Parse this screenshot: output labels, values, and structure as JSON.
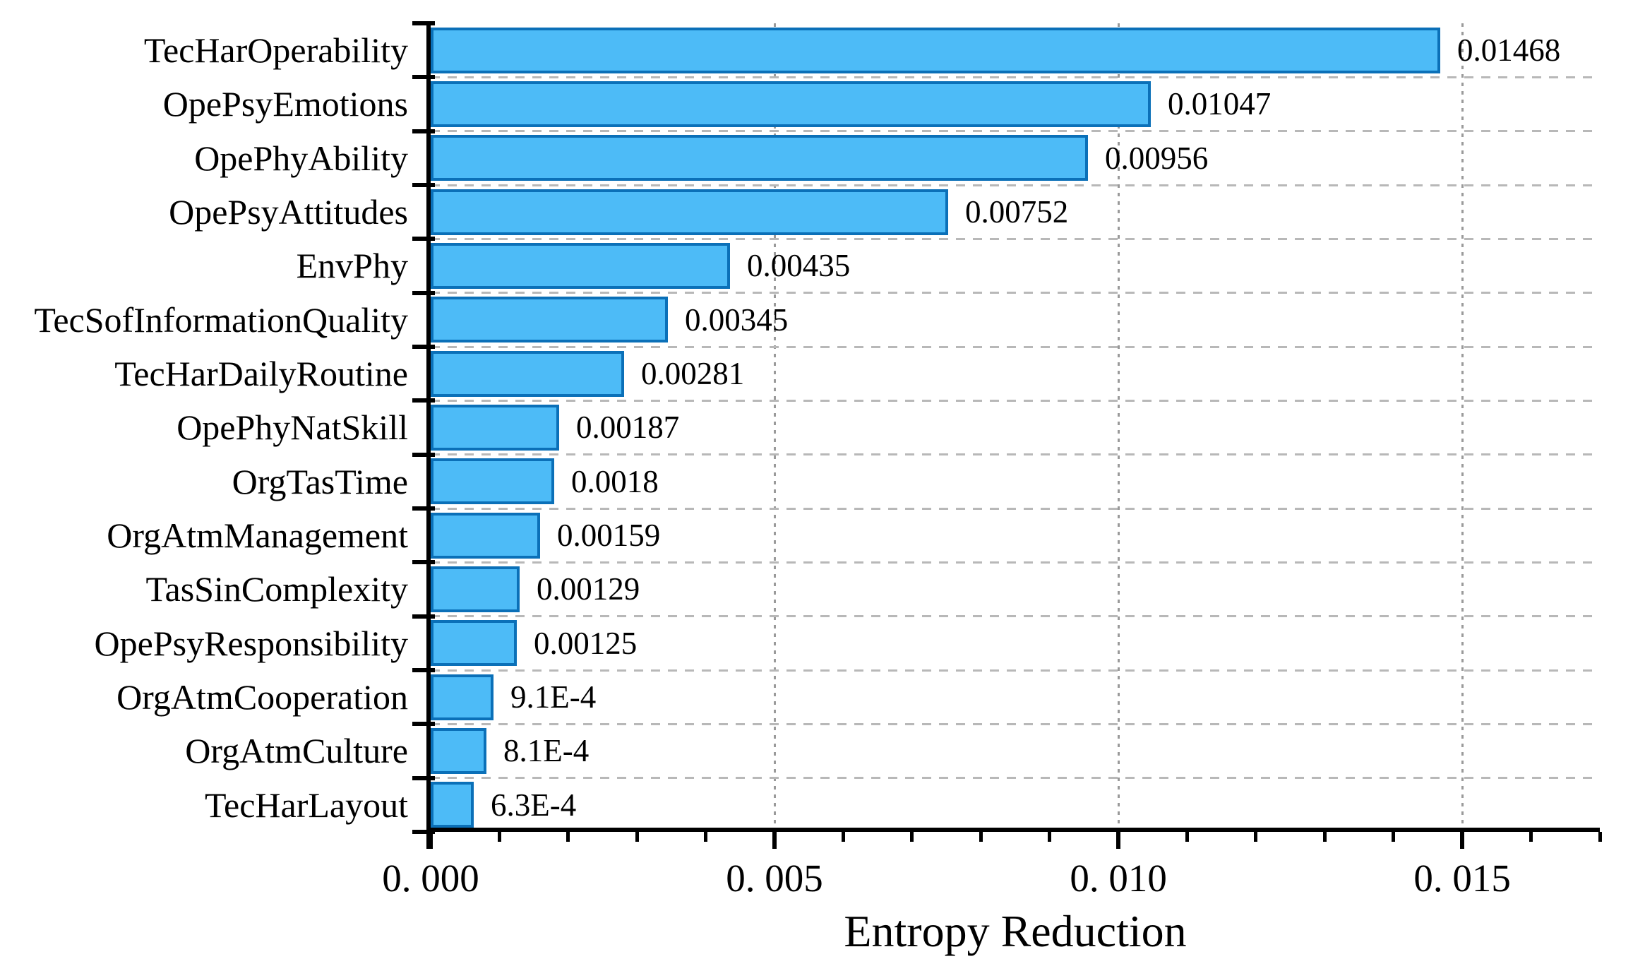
{
  "chart_data": {
    "type": "bar",
    "orientation": "horizontal",
    "title": "",
    "xlabel": "Entropy Reduction",
    "ylabel": "",
    "categories": [
      "TecHarOperability",
      "OpePsyEmotions",
      "OpePhyAbility",
      "OpePsyAttitudes",
      "EnvPhy",
      "TecSofInformationQuality",
      "TecHarDailyRoutine",
      "OpePhyNatSkill",
      "OrgTasTime",
      "OrgAtmManagement",
      "TasSinComplexity",
      "OpePsyResponsibility",
      "OrgAtmCooperation",
      "OrgAtmCulture",
      "TecHarLayout"
    ],
    "values": [
      0.01468,
      0.01047,
      0.00956,
      0.00752,
      0.00435,
      0.00345,
      0.00281,
      0.00187,
      0.0018,
      0.00159,
      0.00129,
      0.00125,
      0.00091,
      0.00081,
      0.00063
    ],
    "value_labels": [
      "0.01468",
      "0.01047",
      "0.00956",
      "0.00752",
      "0.00435",
      "0.00345",
      "0.00281",
      "0.00187",
      "0.0018",
      "0.00159",
      "0.00129",
      "0.00125",
      "9.1E-4",
      "8.1E-4",
      "6.3E-4"
    ],
    "xlim": [
      0,
      0.017
    ],
    "x_major_ticks": [
      {
        "value": 0.0,
        "label": "0. 000"
      },
      {
        "value": 0.005,
        "label": "0. 005"
      },
      {
        "value": 0.01,
        "label": "0. 010"
      },
      {
        "value": 0.015,
        "label": "0. 015"
      }
    ],
    "x_minor_tick_step": 0.001,
    "grid": {
      "horizontal": "dashed at category boundaries",
      "vertical": "dotted at major ticks"
    },
    "legend": "none",
    "colors": {
      "bar_fill": "#4DBBF7",
      "bar_border": "#0B70B8",
      "axis": "#000000",
      "h_grid": "#b8b8b8",
      "v_grid": "#9a9a9a",
      "text": "#000000"
    }
  }
}
